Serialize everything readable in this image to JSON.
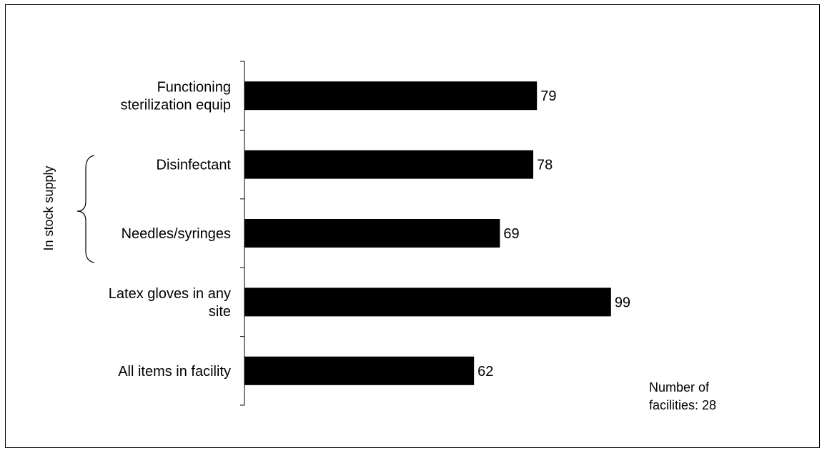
{
  "chart_data": {
    "type": "bar",
    "orientation": "horizontal",
    "categories": [
      [
        "Functioning",
        "sterilization equip"
      ],
      [
        "Disinfectant"
      ],
      [
        "Needles/syringes"
      ],
      [
        "Latex gloves in any",
        "site"
      ],
      [
        "All items in facility"
      ]
    ],
    "values": [
      79,
      78,
      69,
      99,
      62
    ],
    "data_labels": [
      "79",
      "78",
      "69",
      "99",
      "62"
    ],
    "group_label": "In stock supply",
    "note": [
      "Number of",
      "facilities: 28"
    ],
    "bar_color": "#000000",
    "xlim": [
      0,
      100
    ],
    "grid": false
  }
}
